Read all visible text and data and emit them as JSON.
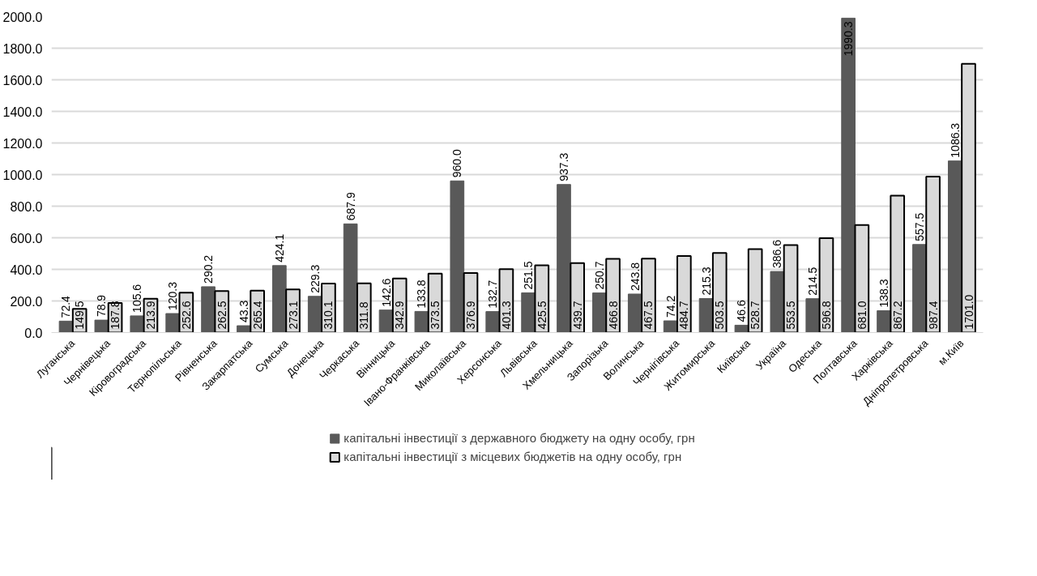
{
  "chart_data": {
    "type": "bar",
    "categories": [
      "Луганська",
      "Чернівецька",
      "Кіровоградська",
      "Тернопільська",
      "Рівненська",
      "Закарпатська",
      "Сумська",
      "Донецька",
      "Черкаська",
      "Вінницька",
      "Івано-Франківська",
      "Миколаївська",
      "Херсонська",
      "Львівська",
      "Хмельницька",
      "Запорізька",
      "Волинська",
      "Чернігівська",
      "Житомирська",
      "Київська",
      "Україна",
      "Одеська",
      "Полтавська",
      "Харківська",
      "Дніпропетровська",
      "м.Київ"
    ],
    "series": [
      {
        "name": "капітальні інвестиції з державного бюджету на одну особу, грн",
        "color": "#595959",
        "values": [
          72.4,
          78.9,
          105.6,
          120.3,
          290.2,
          43.3,
          424.1,
          229.3,
          687.9,
          142.6,
          133.8,
          960.0,
          132.7,
          251.5,
          937.3,
          250.7,
          243.8,
          74.2,
          215.3,
          46.6,
          386.6,
          214.5,
          1990.3,
          138.3,
          557.5,
          1086.3
        ],
        "value_labels": [
          "72.4",
          "78.9",
          "105.6",
          "120.3",
          "290.2",
          "43.3",
          "424.1",
          "229.3",
          "687.9",
          "142.6",
          "133.8",
          "960.0",
          "132.7",
          "251.5",
          "937.3",
          "250.7",
          "243.8",
          "74.2",
          "215.3",
          "46.6",
          "386.6",
          "214.5",
          "1990.3",
          "138.3",
          "557.5",
          "1086.3"
        ]
      },
      {
        "name": "капітальні інвестиції з місцевих бюджетів на одну особу, грн",
        "color": "#d9d9d9",
        "values": [
          149.5,
          187.8,
          213.9,
          252.6,
          262.5,
          265.4,
          273.1,
          310.1,
          311.8,
          342.9,
          373.5,
          376.9,
          401.3,
          425.5,
          439.7,
          466.8,
          467.5,
          484.7,
          503.5,
          528.7,
          553.5,
          596.8,
          681.0,
          867.2,
          987.4,
          1701.0
        ],
        "value_labels": [
          "149.5",
          "187.8",
          "213.9",
          "252.6",
          "262.5",
          "265.4",
          "273.1",
          "310.1",
          "311.8",
          "342.9",
          "373.5",
          "376.9",
          "401.3",
          "425.5",
          "439.7",
          "466.8",
          "467.5",
          "484.7",
          "503.5",
          "528.7",
          "553.5",
          "596.8",
          "681.0",
          "867.2",
          "987.4",
          "1701.0"
        ]
      }
    ],
    "ylim": [
      0,
      2000
    ],
    "yticks": [
      {
        "value": 0,
        "label": "0.0"
      },
      {
        "value": 200,
        "label": "200.0"
      },
      {
        "value": 400,
        "label": "400.0"
      },
      {
        "value": 600,
        "label": "600.0"
      },
      {
        "value": 800,
        "label": "800.0"
      },
      {
        "value": 1000,
        "label": "1000.0"
      },
      {
        "value": 1200,
        "label": "1200.0"
      },
      {
        "value": 1400,
        "label": "1400.0"
      },
      {
        "value": 1600,
        "label": "1600.0"
      },
      {
        "value": 1800,
        "label": "1800.0"
      },
      {
        "value": 2000,
        "label": "2000.0"
      }
    ],
    "grid": "y",
    "legend": "bottom"
  }
}
